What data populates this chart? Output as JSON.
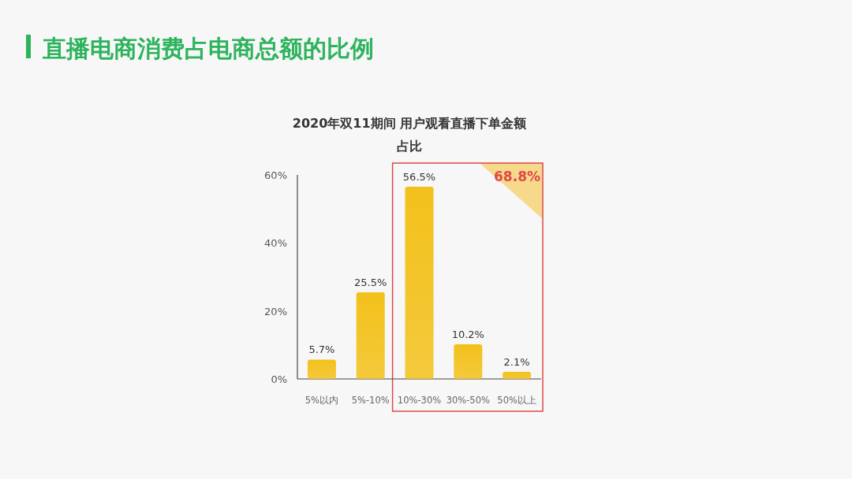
{
  "chart_data": {
    "type": "bar",
    "title": "直播电商消费占电商总额的比例",
    "subtitle": "2020年双11期间 用户观看直播下单金额占比",
    "categories": [
      "5%以内",
      "5%-10%",
      "10%-30%",
      "30%-50%",
      "50%以上"
    ],
    "values": [
      5.7,
      25.5,
      56.5,
      10.2,
      2.1
    ],
    "value_labels": [
      "5.7%",
      "25.5%",
      "56.5%",
      "10.2%",
      "2.1%"
    ],
    "color": "#f3c11b",
    "ylim": [
      0,
      60
    ],
    "yticks": [
      {
        "value": 0,
        "label": "0%"
      },
      {
        "value": 20,
        "label": "20%"
      },
      {
        "value": 40,
        "label": "40%"
      },
      {
        "value": 60,
        "label": "60%"
      }
    ],
    "annotations": [
      "68.8%"
    ],
    "grid": false
  }
}
